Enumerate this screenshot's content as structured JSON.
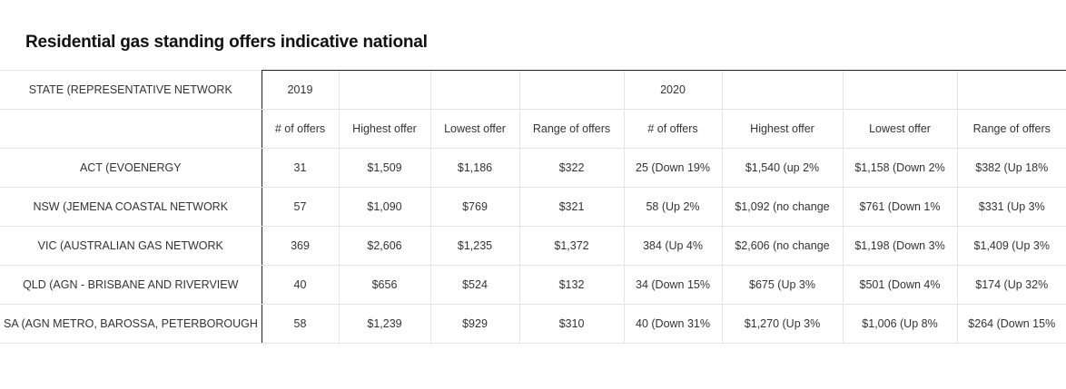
{
  "title": "Residential gas standing offers indicative national",
  "table": {
    "header_row": [
      "STATE (REPRESENTATIVE NETWORK",
      "2019",
      "",
      "",
      "",
      "2020",
      "",
      "",
      ""
    ],
    "subheader_row": [
      "",
      "# of offers",
      "Highest offer",
      "Lowest offer",
      "Range of offers",
      "# of offers",
      "Highest offer",
      "Lowest offer",
      "Range of offers"
    ],
    "rows": [
      [
        "ACT (EVOENERGY",
        "31",
        "$1,509",
        "$1,186",
        "$322",
        "25 (Down 19%",
        "$1,540 (up 2%",
        "$1,158 (Down 2%",
        "$382 (Up 18%"
      ],
      [
        "NSW (JEMENA COASTAL NETWORK",
        "57",
        "$1,090",
        "$769",
        "$321",
        "58 (Up 2%",
        "$1,092 (no change",
        "$761 (Down 1%",
        "$331 (Up 3%"
      ],
      [
        "VIC (AUSTRALIAN GAS NETWORK",
        "369",
        "$2,606",
        "$1,235",
        "$1,372",
        "384 (Up 4%",
        "$2,606 (no change",
        "$1,198 (Down 3%",
        "$1,409 (Up 3%"
      ],
      [
        "QLD (AGN - BRISBANE AND RIVERVIEW",
        "40",
        "$656",
        "$524",
        "$132",
        "34 (Down 15%",
        "$675 (Up 3%",
        "$501 (Down 4%",
        "$174 (Up 32%"
      ],
      [
        "SA (AGN METRO, BAROSSA, PETERBOROUGH",
        "58",
        "$1,239",
        "$929",
        "$310",
        "40 (Down 31%",
        "$1,270 (Up 3%",
        "$1,006 (Up 8%",
        "$264 (Down 15%"
      ]
    ]
  }
}
